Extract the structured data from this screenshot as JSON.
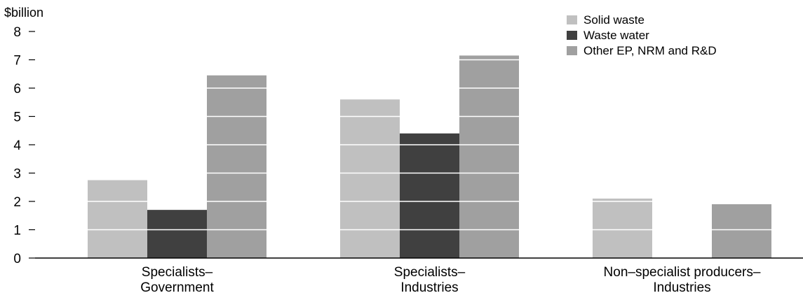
{
  "chart_data": {
    "type": "bar",
    "ylabel": "$billion",
    "ylim": [
      0,
      8
    ],
    "yticks": [
      "0",
      "1",
      "2",
      "3",
      "4",
      "5",
      "6",
      "7",
      "8"
    ],
    "grid": "horizontal white lines inside bars",
    "legend_position": "top-right",
    "categories": [
      [
        "Specialists–",
        "Government"
      ],
      [
        "Specialists–",
        "Industries"
      ],
      [
        "Non–specialist producers–",
        "Industries"
      ]
    ],
    "series": [
      {
        "name": "Solid waste",
        "color": "#c0c0c0",
        "values": [
          2.75,
          5.6,
          2.1
        ]
      },
      {
        "name": "Waste water",
        "color": "#404040",
        "values": [
          1.7,
          4.4,
          0
        ]
      },
      {
        "name": "Other EP, NRM and R&D",
        "color": "#a0a0a0",
        "values": [
          6.45,
          7.15,
          1.9
        ]
      }
    ]
  }
}
